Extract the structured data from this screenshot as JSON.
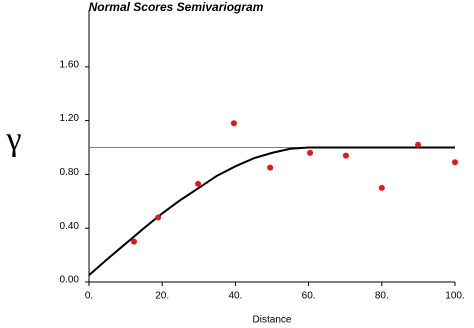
{
  "chart_data": {
    "type": "scatter",
    "title": "Normal Scores Semivariogram",
    "x_label": "Distance",
    "y_label": "γ",
    "xlim": [
      0,
      100
    ],
    "ylim": [
      0,
      2.0
    ],
    "xticks": [
      {
        "value": 0,
        "label": "0."
      },
      {
        "value": 20,
        "label": "20."
      },
      {
        "value": 40,
        "label": "40."
      },
      {
        "value": 60,
        "label": "60."
      },
      {
        "value": 80,
        "label": "80."
      },
      {
        "value": 100,
        "label": "100."
      }
    ],
    "yticks": [
      {
        "value": 0,
        "label": "0.00"
      },
      {
        "value": 0.4,
        "label": "0.40"
      },
      {
        "value": 0.8,
        "label": "0.80"
      },
      {
        "value": 1.2,
        "label": "1.20"
      },
      {
        "value": 1.6,
        "label": "1.60"
      }
    ],
    "grid": false,
    "series": [
      {
        "style": "line",
        "color": "#555555",
        "width": 0.8,
        "x": [
          0,
          100
        ],
        "values": [
          1.0,
          1.0
        ]
      },
      {
        "style": "line",
        "color": "#000000",
        "width": 2,
        "x": [
          0,
          5,
          10,
          15,
          20,
          25,
          30,
          35,
          40,
          45,
          50,
          55,
          60,
          70,
          80,
          90,
          100
        ],
        "values": [
          0.05,
          0.17,
          0.285,
          0.4,
          0.51,
          0.61,
          0.7,
          0.79,
          0.86,
          0.92,
          0.96,
          0.99,
          1.0,
          1.0,
          1.0,
          1.0,
          1.0
        ]
      },
      {
        "style": "markers",
        "color": "#e8141b",
        "x": [
          12.3,
          18.9,
          29.8,
          39.6,
          49.5,
          60.4,
          70.2,
          80.0,
          89.9,
          100.0
        ],
        "values": [
          0.3,
          0.48,
          0.73,
          1.18,
          0.85,
          0.96,
          0.94,
          0.7,
          1.02,
          0.89
        ]
      }
    ]
  }
}
